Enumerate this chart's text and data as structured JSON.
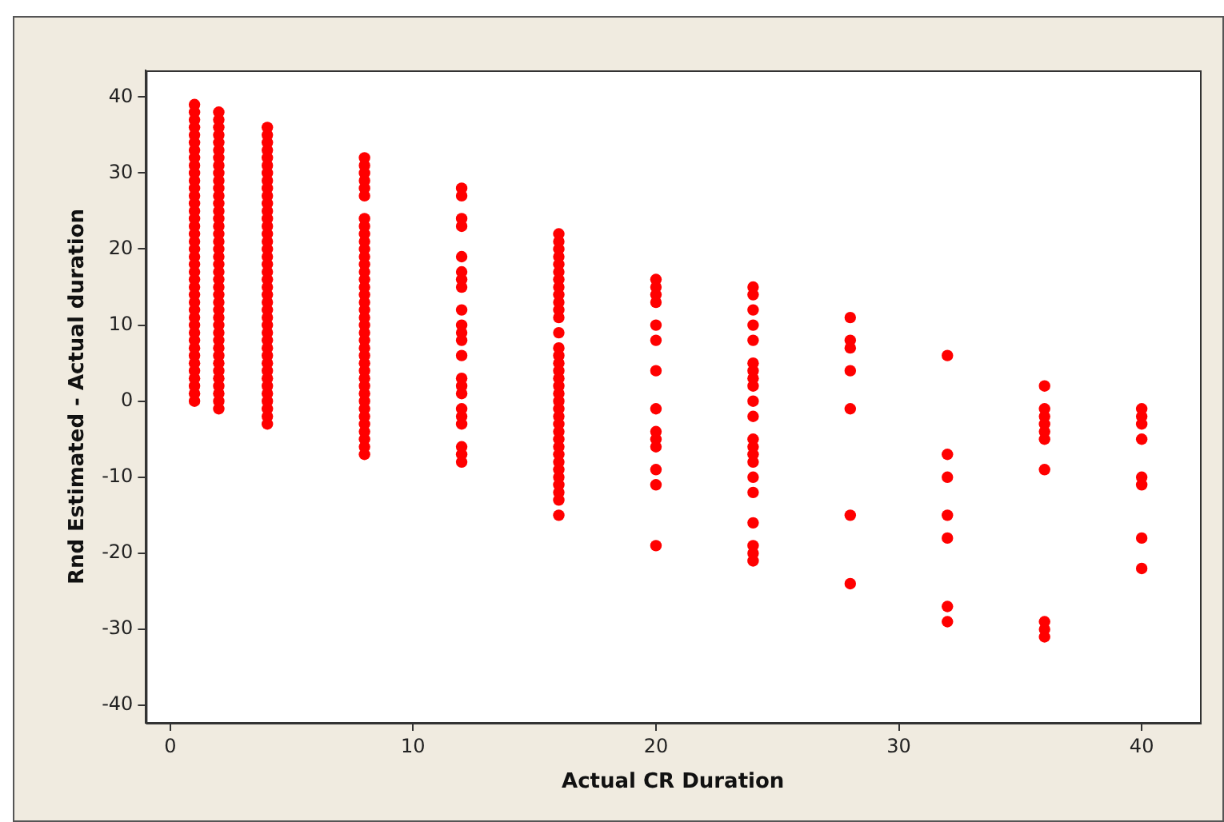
{
  "chart_data": {
    "type": "scatter",
    "xlabel": "Actual CR Duration",
    "ylabel": "Rnd Estimated - Actual duration",
    "xlim": [
      -1,
      42.4
    ],
    "ylim": [
      -42.3,
      43.5
    ],
    "xticks": [
      0,
      10,
      20,
      30,
      40
    ],
    "yticks": [
      -40,
      -30,
      -20,
      -10,
      0,
      10,
      20,
      30,
      40
    ],
    "grid": false,
    "legend": false,
    "marker": "circle",
    "series": [
      {
        "color": "#ff0000",
        "x": [
          1,
          1,
          1,
          1,
          1,
          1,
          1,
          1,
          1,
          1,
          1,
          1,
          1,
          1,
          1,
          1,
          1,
          1,
          1,
          1,
          1,
          1,
          1,
          1,
          1,
          1,
          1,
          1,
          1,
          1,
          1,
          1,
          1,
          1,
          1,
          1,
          1,
          1,
          1,
          1,
          2,
          2,
          2,
          2,
          2,
          2,
          2,
          2,
          2,
          2,
          2,
          2,
          2,
          2,
          2,
          2,
          2,
          2,
          2,
          2,
          2,
          2,
          2,
          2,
          2,
          2,
          2,
          2,
          2,
          2,
          2,
          2,
          2,
          2,
          2,
          2,
          2,
          2,
          2,
          2,
          4,
          4,
          4,
          4,
          4,
          4,
          4,
          4,
          4,
          4,
          4,
          4,
          4,
          4,
          4,
          4,
          4,
          4,
          4,
          4,
          4,
          4,
          4,
          4,
          4,
          4,
          4,
          4,
          4,
          4,
          4,
          4,
          4,
          4,
          4,
          4,
          4,
          4,
          4,
          4,
          8,
          8,
          8,
          8,
          8,
          8,
          8,
          8,
          8,
          8,
          8,
          8,
          8,
          8,
          8,
          8,
          8,
          8,
          8,
          8,
          8,
          8,
          8,
          8,
          8,
          8,
          8,
          8,
          8,
          8,
          8,
          8,
          8,
          8,
          8,
          8,
          8,
          8,
          12,
          12,
          12,
          12,
          12,
          12,
          12,
          12,
          12,
          12,
          12,
          12,
          12,
          12,
          12,
          12,
          12,
          12,
          12,
          12,
          12,
          12,
          16,
          16,
          16,
          16,
          16,
          16,
          16,
          16,
          16,
          16,
          16,
          16,
          16,
          16,
          16,
          16,
          16,
          16,
          16,
          16,
          16,
          16,
          16,
          16,
          16,
          16,
          16,
          16,
          16,
          16,
          16,
          16,
          16,
          16,
          16,
          20,
          20,
          20,
          20,
          20,
          20,
          20,
          20,
          20,
          20,
          20,
          20,
          20,
          20,
          24,
          24,
          24,
          24,
          24,
          24,
          24,
          24,
          24,
          24,
          24,
          24,
          24,
          24,
          24,
          24,
          24,
          24,
          24,
          24,
          24,
          28,
          28,
          28,
          28,
          28,
          28,
          28,
          32,
          32,
          32,
          32,
          32,
          32,
          32,
          36,
          36,
          36,
          36,
          36,
          36,
          36,
          36,
          36,
          36,
          40,
          40,
          40,
          40,
          40,
          40,
          40,
          40
        ],
        "values": [
          0,
          1,
          2,
          3,
          4,
          5,
          6,
          7,
          8,
          9,
          10,
          11,
          12,
          13,
          14,
          15,
          16,
          17,
          18,
          19,
          20,
          21,
          22,
          23,
          24,
          25,
          26,
          27,
          28,
          29,
          30,
          31,
          32,
          33,
          34,
          35,
          36,
          37,
          38,
          39,
          -1,
          0,
          1,
          2,
          3,
          4,
          5,
          6,
          7,
          8,
          9,
          10,
          11,
          12,
          13,
          14,
          15,
          16,
          17,
          18,
          19,
          20,
          21,
          22,
          23,
          24,
          25,
          26,
          27,
          28,
          29,
          30,
          31,
          32,
          33,
          34,
          35,
          36,
          37,
          38,
          -3,
          -2,
          -1,
          0,
          1,
          2,
          3,
          4,
          5,
          6,
          7,
          8,
          9,
          10,
          11,
          12,
          13,
          14,
          15,
          16,
          17,
          18,
          19,
          20,
          21,
          22,
          23,
          24,
          25,
          26,
          27,
          28,
          29,
          30,
          31,
          32,
          33,
          34,
          35,
          36,
          32,
          31,
          30,
          29,
          28,
          27,
          24,
          23,
          22,
          21,
          20,
          19,
          18,
          17,
          16,
          15,
          14,
          13,
          12,
          11,
          10,
          9,
          8,
          7,
          6,
          5,
          4,
          3,
          2,
          1,
          0,
          -1,
          -2,
          -3,
          -4,
          -5,
          -6,
          -7,
          28,
          27,
          24,
          23,
          19,
          17,
          16,
          15,
          12,
          10,
          9,
          8,
          6,
          3,
          2,
          1,
          -1,
          -2,
          -3,
          -6,
          -7,
          -8,
          22,
          21,
          20,
          19,
          18,
          17,
          16,
          15,
          14,
          13,
          12,
          11,
          9,
          7,
          6,
          5,
          4,
          3,
          2,
          1,
          0,
          -1,
          -2,
          -3,
          -4,
          -5,
          -6,
          -7,
          -8,
          -9,
          -10,
          -11,
          -12,
          -13,
          -15,
          16,
          15,
          14,
          13,
          10,
          8,
          4,
          -1,
          -4,
          -5,
          -6,
          -9,
          -11,
          -19,
          15,
          14,
          12,
          10,
          8,
          5,
          4,
          3,
          2,
          0,
          -2,
          -5,
          -6,
          -7,
          -8,
          -10,
          -12,
          -16,
          -19,
          -20,
          -21,
          11,
          8,
          7,
          4,
          -1,
          -15,
          -24,
          6,
          -7,
          -10,
          -15,
          -18,
          -27,
          -29,
          2,
          -1,
          -2,
          -3,
          -4,
          -5,
          -9,
          -29,
          -30,
          -31,
          -1,
          -2,
          -3,
          -5,
          -10,
          -11,
          -18,
          -22
        ]
      }
    ]
  }
}
